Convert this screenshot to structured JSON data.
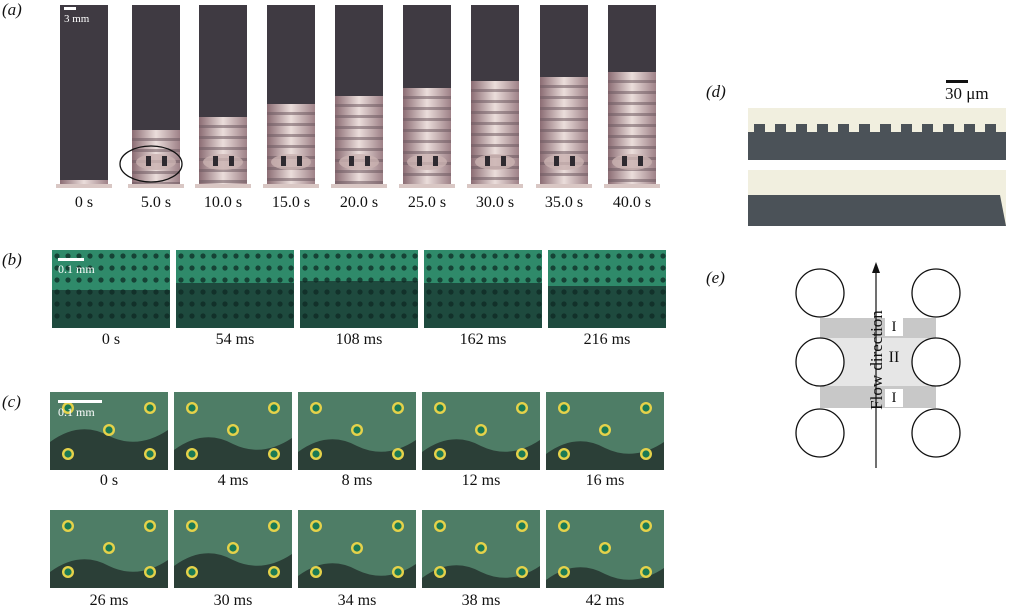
{
  "panel_labels": {
    "a": "(a)",
    "b": "(b)",
    "c": "(c)",
    "d": "(d)",
    "e": "(e)"
  },
  "panel_a": {
    "scale_bar": "3 mm",
    "times": [
      "0 s",
      "5.0 s",
      "10.0 s",
      "15.0 s",
      "20.0 s",
      "25.0 s",
      "30.0 s",
      "35.0 s",
      "40.0 s"
    ]
  },
  "panel_b": {
    "scale_bar": "0.1 mm",
    "times": [
      "0 s",
      "54 ms",
      "108 ms",
      "162 ms",
      "216 ms"
    ]
  },
  "panel_c": {
    "scale_bar": "0.1 mm",
    "times_row1": [
      "0 s",
      "4 ms",
      "8 ms",
      "12 ms",
      "16 ms"
    ],
    "times_row2": [
      "26 ms",
      "30 ms",
      "34 ms",
      "38 ms",
      "42 ms"
    ]
  },
  "panel_d": {
    "scale_bar": "30 μm"
  },
  "panel_e": {
    "axis_label": "Flow direction",
    "region_labels": [
      "I",
      "II",
      "I"
    ]
  },
  "colors": {
    "strip_dark": "#3f3a42",
    "strip_light": "#e8d6d2",
    "green_bg": "#2f8a6a",
    "green_dark": "#1e4a3e",
    "gray_region": "#c8c8c8",
    "light_region": "#e6e6e6",
    "d_dark": "#4b5258",
    "d_light": "#f1efdf"
  }
}
